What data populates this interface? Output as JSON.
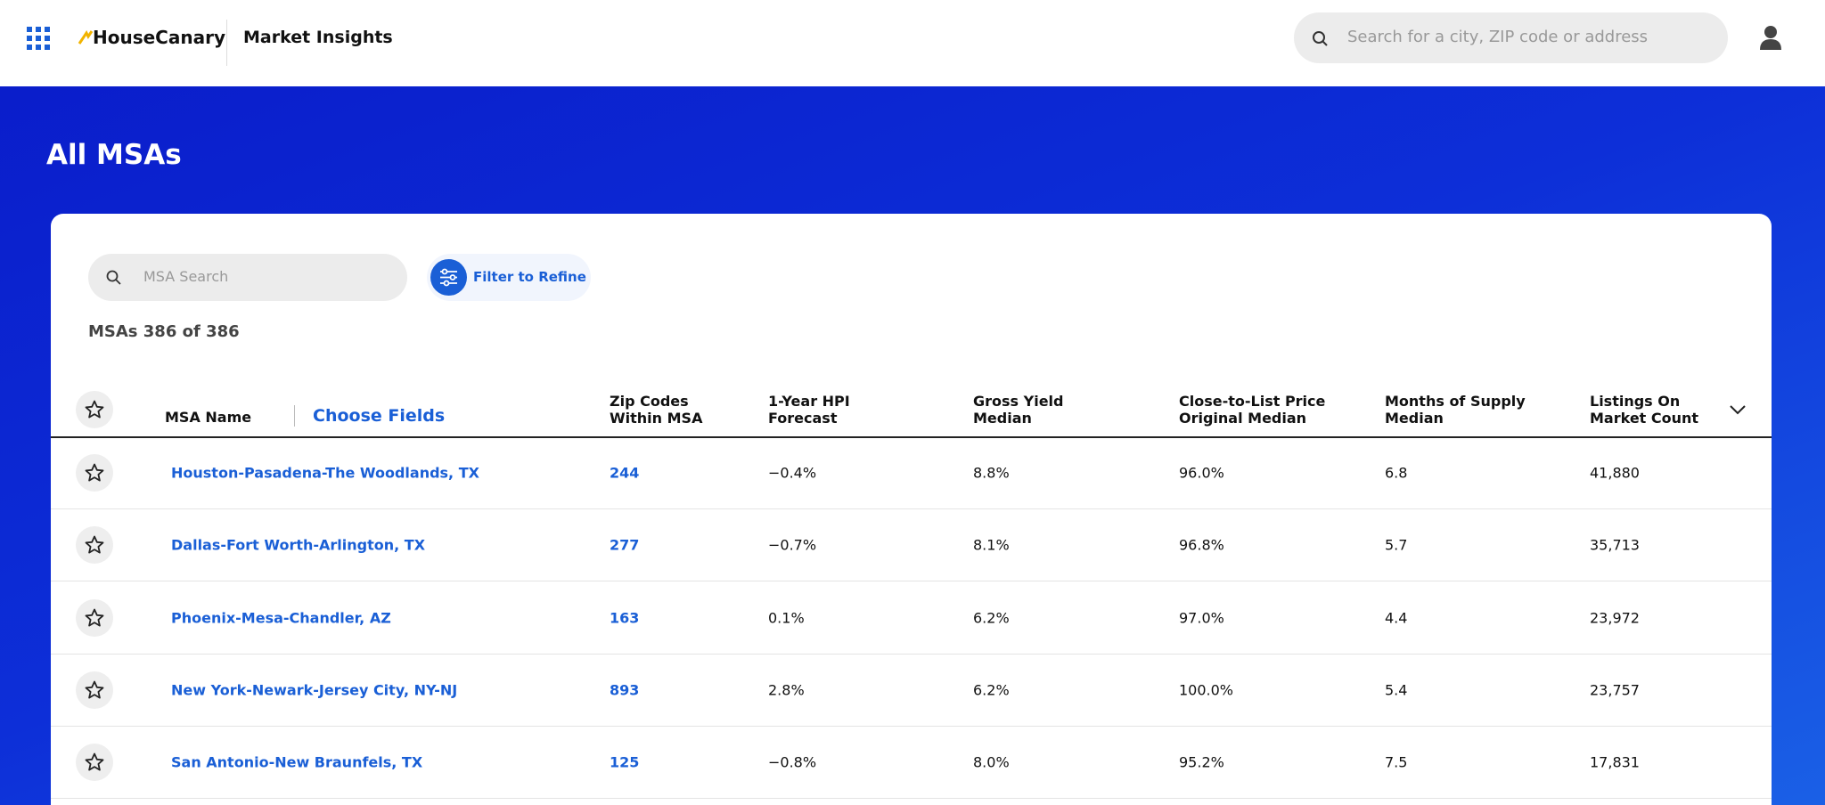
{
  "header": {
    "logo": "HouseCanary",
    "product": "Market Insights",
    "search_placeholder": "Search for a city, ZIP code or address"
  },
  "page_title": "All MSAs",
  "toolbar": {
    "search_placeholder": "MSA Search",
    "filter_label": "Filter to Refine",
    "count": "MSAs 386 of 386"
  },
  "table": {
    "name_column": "MSA Name",
    "choose_fields": "Choose Fields",
    "columns": [
      [
        "Zip Codes",
        "Within MSA"
      ],
      [
        "1-Year HPI",
        "Forecast"
      ],
      [
        "Gross Yield",
        "Median"
      ],
      [
        "Close-to-List Price",
        "Original Median"
      ],
      [
        "Months of Supply",
        "Median"
      ],
      [
        "Listings On",
        "Market Count"
      ]
    ],
    "rows": [
      [
        "Houston-Pasadena-The Woodlands, TX",
        "244",
        "−0.4%",
        "8.8%",
        "96.0%",
        "6.8",
        "41,880"
      ],
      [
        "Dallas-Fort Worth-Arlington, TX",
        "277",
        "−0.7%",
        "8.1%",
        "96.8%",
        "5.7",
        "35,713"
      ],
      [
        "Phoenix-Mesa-Chandler, AZ",
        "163",
        "0.1%",
        "6.2%",
        "97.0%",
        "4.4",
        "23,972"
      ],
      [
        "New York-Newark-Jersey City, NY-NJ",
        "893",
        "2.8%",
        "6.2%",
        "100.0%",
        "5.4",
        "23,757"
      ],
      [
        "San Antonio-New Braunfels, TX",
        "125",
        "−0.8%",
        "8.0%",
        "95.2%",
        "7.5",
        "17,831"
      ]
    ]
  }
}
